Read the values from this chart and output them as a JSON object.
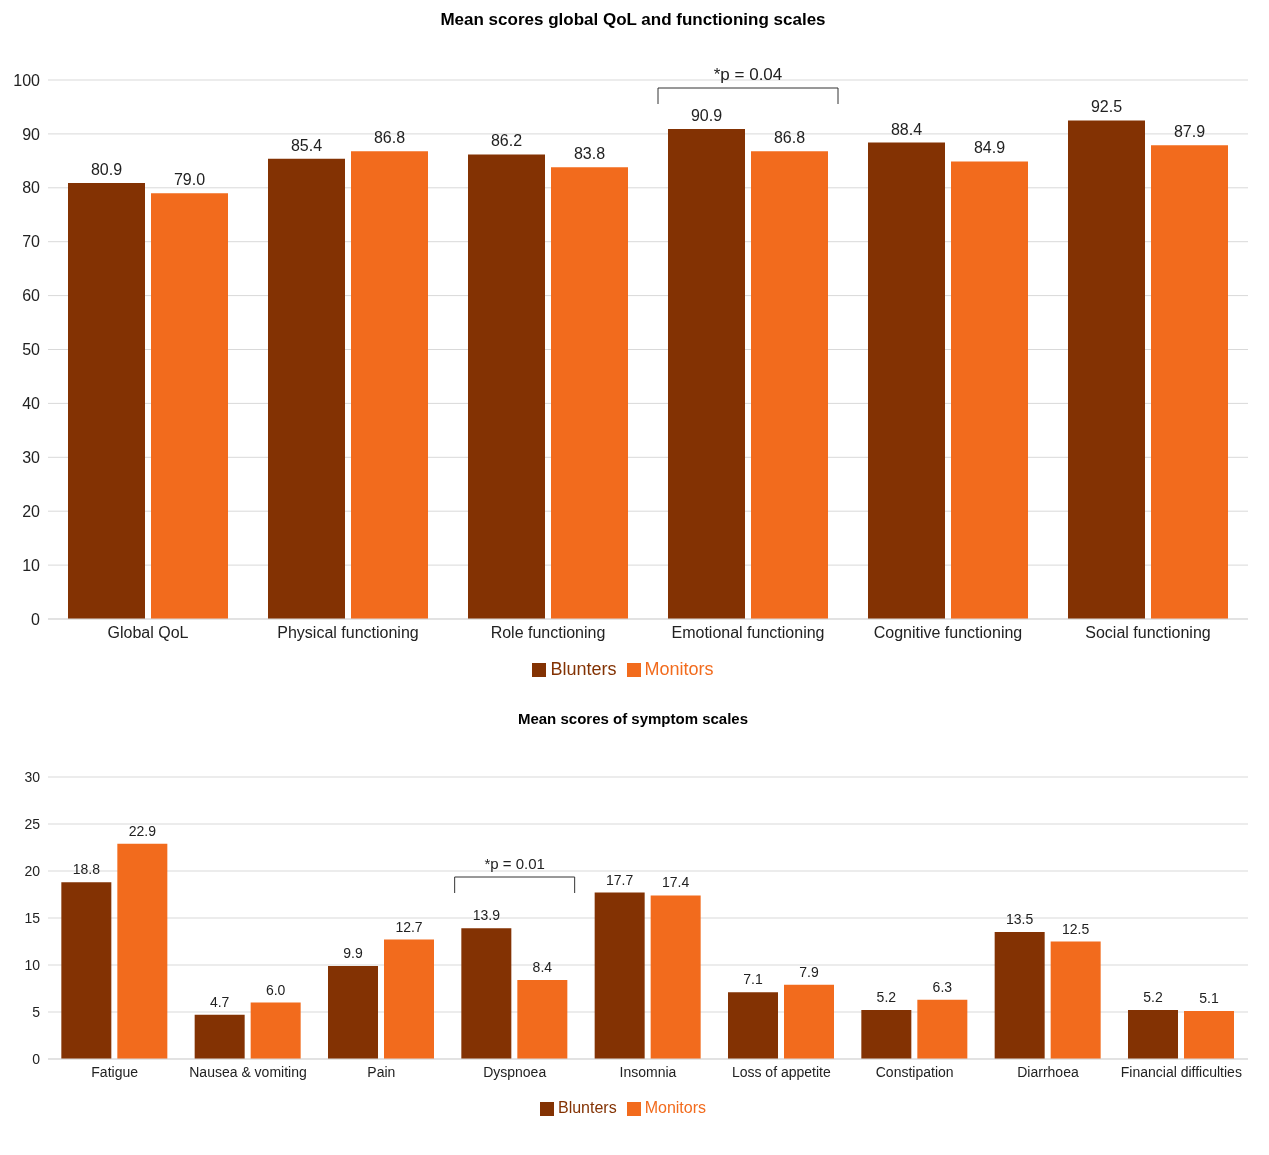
{
  "chart_data": [
    {
      "type": "bar",
      "title": "Mean scores global QoL and functioning scales",
      "categories": [
        "Global QoL",
        "Physical functioning",
        "Role functioning",
        "Emotional functioning",
        "Cognitive functioning",
        "Social functioning"
      ],
      "series": [
        {
          "name": "Blunters",
          "color": "#833203",
          "values": [
            80.9,
            85.4,
            86.2,
            90.9,
            88.4,
            92.5
          ],
          "value_labels": [
            "80.9",
            "85.4",
            "86.2",
            "90.9",
            "88.4",
            "92.5"
          ]
        },
        {
          "name": "Monitors",
          "color": "#f26b1d",
          "values": [
            79.0,
            86.8,
            83.8,
            86.8,
            84.9,
            87.9
          ],
          "value_labels": [
            "79.0",
            "86.8",
            "83.8",
            "86.8",
            "84.9",
            "87.9"
          ]
        }
      ],
      "ylim": [
        0,
        100
      ],
      "yticks": [
        0,
        10,
        20,
        30,
        40,
        50,
        60,
        70,
        80,
        90,
        100
      ],
      "grid": "y",
      "legend": "bottom",
      "annotations": [
        "*p = 0.04"
      ]
    },
    {
      "type": "bar",
      "title": "Mean scores of symptom scales",
      "categories": [
        "Fatigue",
        "Nausea & vomiting",
        "Pain",
        "Dyspnoea",
        "Insomnia",
        "Loss of appetite",
        "Constipation",
        "Diarrhoea",
        "Financial difficulties"
      ],
      "series": [
        {
          "name": "Blunters",
          "color": "#833203",
          "values": [
            18.8,
            4.7,
            9.9,
            13.9,
            17.7,
            7.1,
            5.2,
            13.5,
            5.2
          ],
          "value_labels": [
            "18.8",
            "4.7",
            "9.9",
            "13.9",
            "17.7",
            "7.1",
            "5.2",
            "13.5",
            "5.2"
          ]
        },
        {
          "name": "Monitors",
          "color": "#f26b1d",
          "values": [
            22.9,
            6.0,
            12.7,
            8.4,
            17.4,
            7.9,
            6.3,
            12.5,
            5.1
          ],
          "value_labels": [
            "22.9",
            "6.0",
            "12.7",
            "8.4",
            "17.4",
            "7.9",
            "6.3",
            "12.5",
            "5.1"
          ]
        }
      ],
      "ylim": [
        0,
        30
      ],
      "yticks": [
        0,
        5,
        10,
        15,
        20,
        25,
        30
      ],
      "grid": "y",
      "legend": "bottom",
      "annotations": [
        "*p = 0.01"
      ]
    }
  ]
}
